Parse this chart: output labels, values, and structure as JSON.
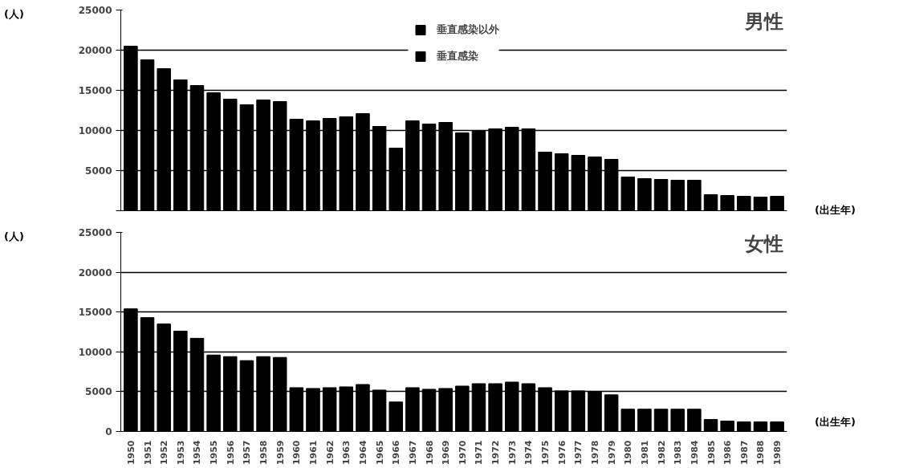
{
  "chart_data": [
    {
      "type": "bar",
      "title": "男性",
      "ylabel": "(人)",
      "xlabel": "(出生年)",
      "stacked": true,
      "legend": "top",
      "grid": "y",
      "tick_labels": "y",
      "categories": [
        "1950",
        "1951",
        "1952",
        "1953",
        "1954",
        "1955",
        "1956",
        "1957",
        "1958",
        "1959",
        "1960",
        "1961",
        "1962",
        "1963",
        "1964",
        "1965",
        "1966",
        "1967",
        "1968",
        "1969",
        "1970",
        "1971",
        "1972",
        "1973",
        "1974",
        "1975",
        "1976",
        "1977",
        "1978",
        "1979",
        "1980",
        "1981",
        "1982",
        "1983",
        "1984",
        "1985",
        "1986",
        "1987",
        "1988",
        "1989"
      ],
      "ylim": [
        0,
        25000
      ],
      "yticks": [
        {
          "value": 0,
          "label": null
        },
        5000,
        10000,
        15000,
        20000,
        25000
      ],
      "series": [
        {
          "name": "垂直感染以外",
          "color": "#000000",
          "values": [
            20500,
            18800,
            17700,
            16300,
            15600,
            14700,
            13900,
            13200,
            13800,
            13600,
            11400,
            11200,
            11500,
            11700,
            12100,
            10500,
            7800,
            11200,
            10800,
            11000,
            9700,
            9900,
            10200,
            10400,
            10200,
            7300,
            7100,
            6900,
            6700,
            6400,
            4200,
            4000,
            3900,
            3800,
            3800,
            2000,
            1900,
            1800,
            1700,
            1800
          ]
        },
        {
          "name": "垂直感染",
          "color": "#000000",
          "values": [
            null,
            null,
            null,
            null,
            null,
            null,
            null,
            null,
            null,
            null,
            null,
            null,
            null,
            null,
            null,
            null,
            null,
            null,
            null,
            null,
            null,
            null,
            null,
            null,
            null,
            null,
            null,
            null,
            null,
            null,
            null,
            null,
            null,
            null,
            null,
            null,
            null,
            null,
            null,
            null
          ]
        }
      ]
    },
    {
      "type": "bar",
      "title": "女性",
      "ylabel": "(人)",
      "xlabel": "(出生年)",
      "stacked": true,
      "grid": "y",
      "categories": [
        "1950",
        "1951",
        "1952",
        "1953",
        "1954",
        "1955",
        "1956",
        "1957",
        "1958",
        "1959",
        "1960",
        "1961",
        "1962",
        "1963",
        "1964",
        "1965",
        "1966",
        "1967",
        "1968",
        "1969",
        "1970",
        "1971",
        "1972",
        "1973",
        "1974",
        "1975",
        "1976",
        "1977",
        "1978",
        "1979",
        "1980",
        "1981",
        "1982",
        "1983",
        "1984",
        "1985",
        "1986",
        "1987",
        "1988",
        "1989"
      ],
      "ylim": [
        0,
        25000
      ],
      "yticks": [
        0,
        5000,
        10000,
        15000,
        20000,
        25000
      ],
      "series": [
        {
          "color": "#000000",
          "values": [
            15400,
            14300,
            13500,
            12600,
            11700,
            9600,
            9400,
            8900,
            9400,
            9300,
            5500,
            5400,
            5500,
            5600,
            5900,
            5200,
            3700,
            5500,
            5300,
            5400,
            5700,
            6000,
            6000,
            6200,
            6000,
            5500,
            5100,
            5100,
            5000,
            4600,
            2800,
            2800,
            2800,
            2800,
            2800,
            1500,
            1300,
            1200,
            1200,
            1200
          ]
        }
      ]
    }
  ]
}
